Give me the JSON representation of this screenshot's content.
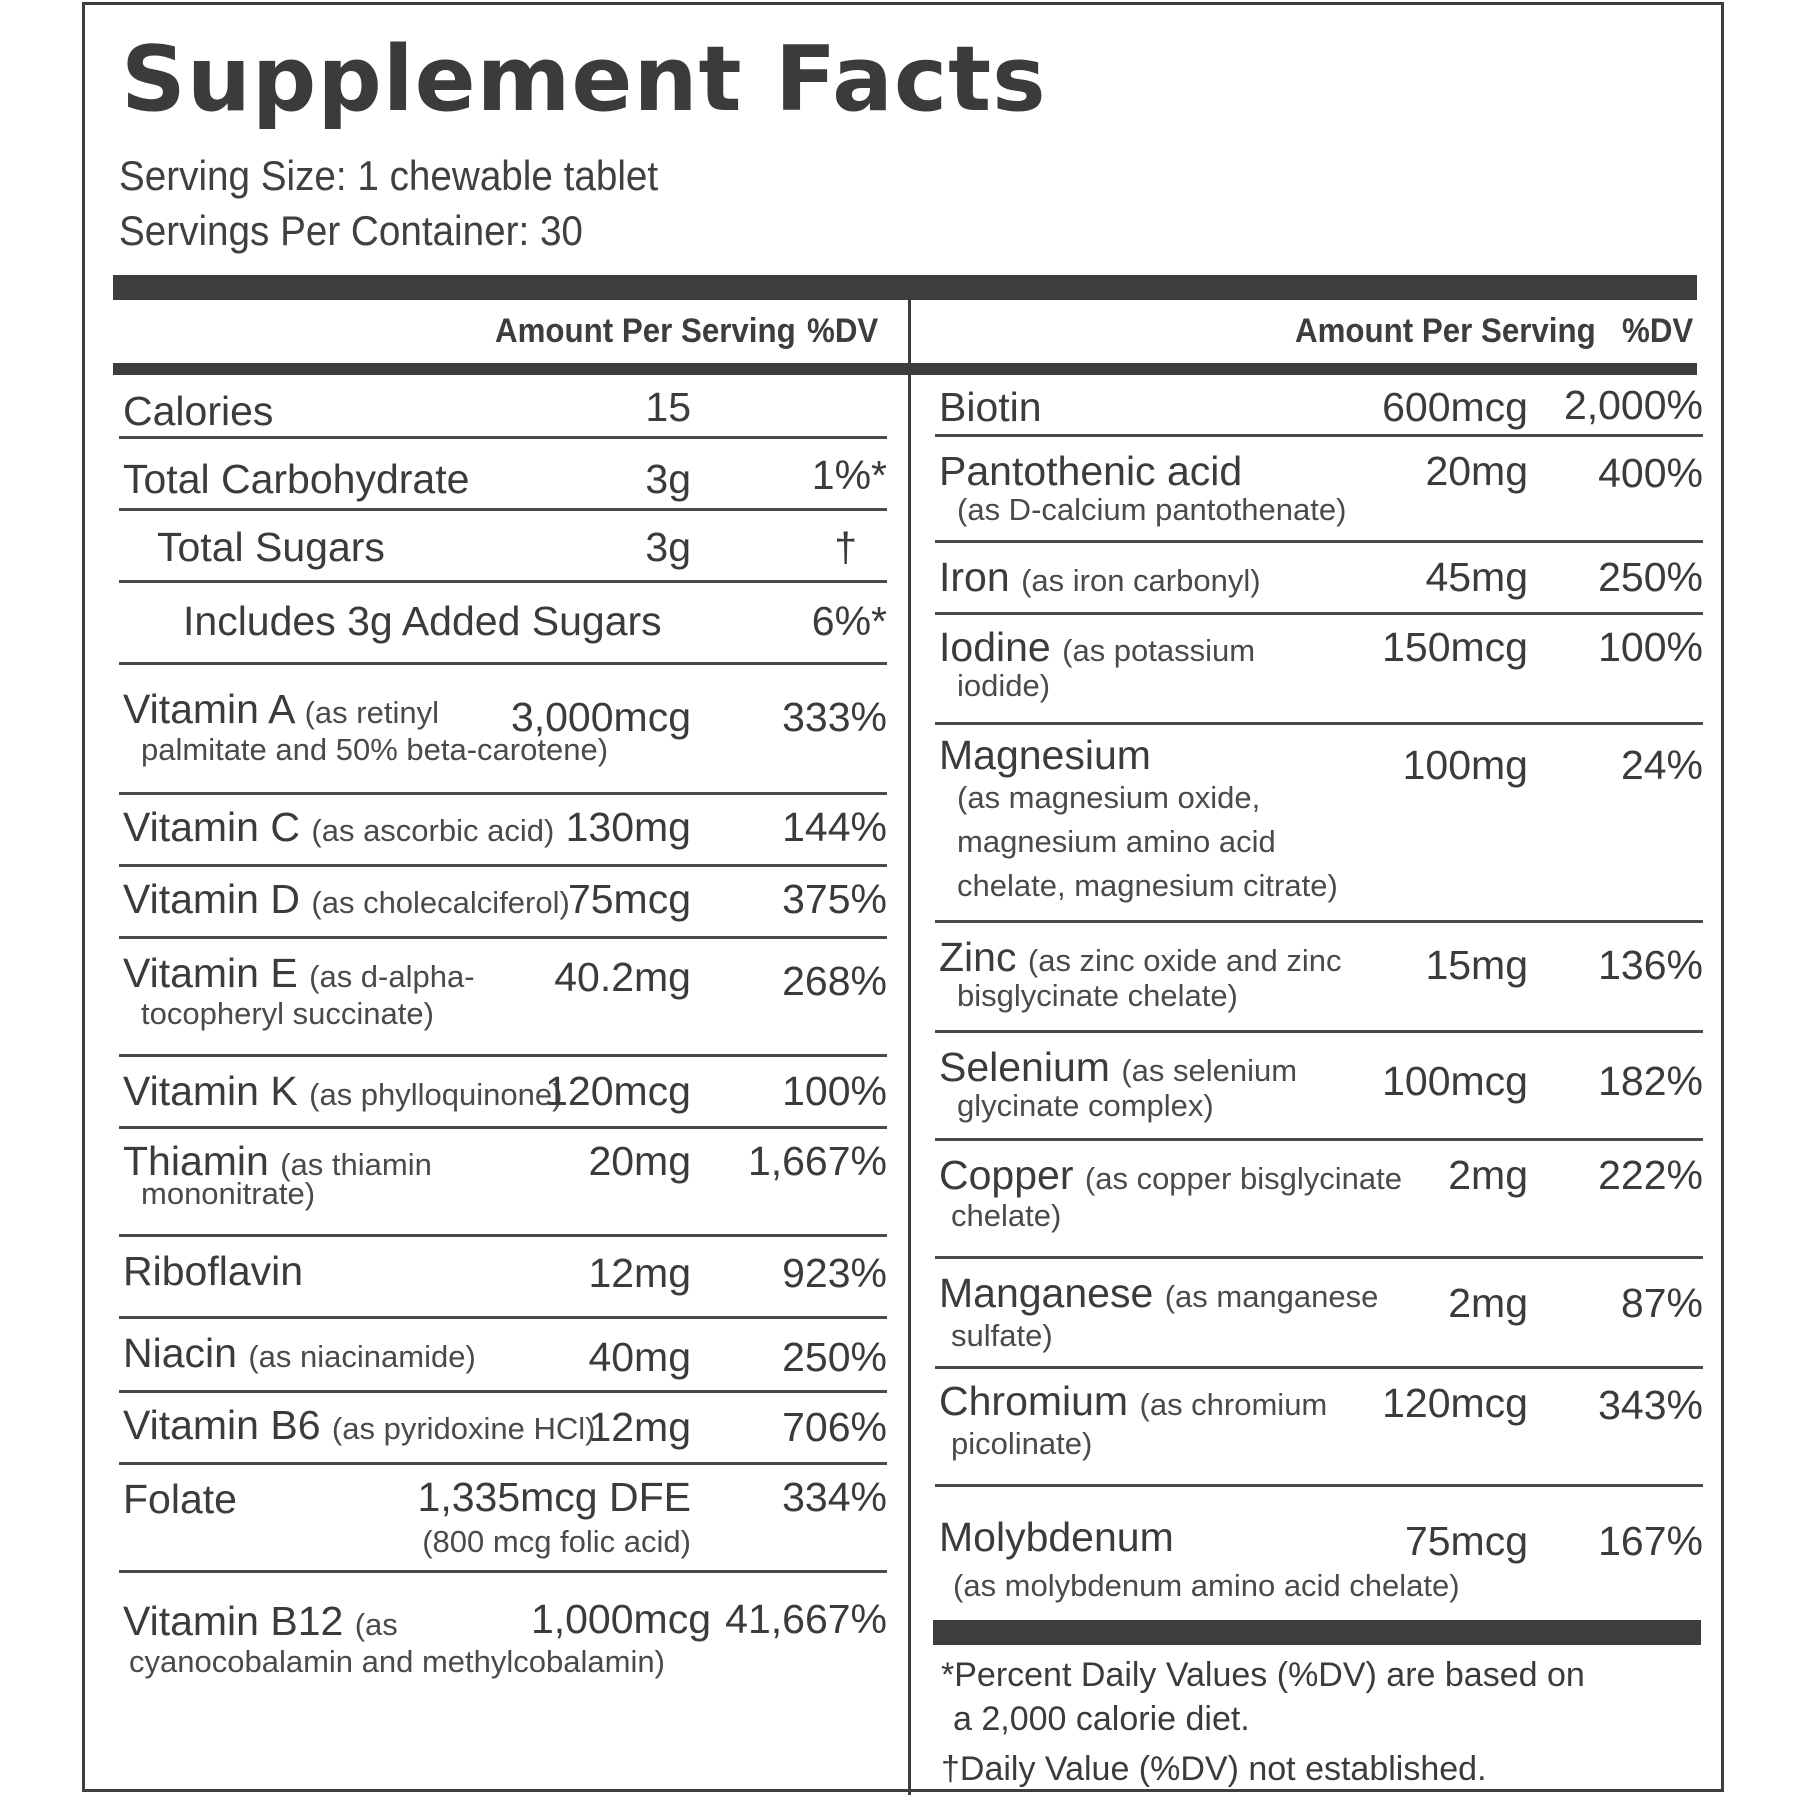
{
  "title": "Supplement Facts",
  "serving_size": "Serving Size: 1 chewable tablet",
  "servings_per_container": "Servings Per Container: 30",
  "header": {
    "amount": "Amount Per Serving",
    "dv": "%DV"
  },
  "left": {
    "calories": {
      "name": "Calories",
      "amount": "15",
      "dv": ""
    },
    "total_carb": {
      "name": "Total Carbohydrate",
      "amount": "3g",
      "dv": "1%*"
    },
    "total_sugars": {
      "name": "Total Sugars",
      "amount": "3g",
      "dv": "†"
    },
    "added_sugars": {
      "name": "Includes 3g Added Sugars",
      "dv": "6%*"
    },
    "vitamin_a": {
      "name": "Vitamin A",
      "src": "(as retinyl",
      "src2": "palmitate and 50% beta-carotene)",
      "amount": "3,000mcg",
      "dv": "333%"
    },
    "vitamin_c": {
      "name": "Vitamin C",
      "src": "(as ascorbic acid)",
      "amount": "130mg",
      "dv": "144%"
    },
    "vitamin_d": {
      "name": "Vitamin D",
      "src": "(as cholecalciferol)",
      "amount": "75mcg",
      "dv": "375%"
    },
    "vitamin_e": {
      "name": "Vitamin E",
      "src": "(as d-alpha-",
      "src2": "tocopheryl succinate)",
      "amount": "40.2mg",
      "dv": "268%"
    },
    "vitamin_k": {
      "name": "Vitamin K",
      "src": "(as phylloquinone)",
      "amount": "120mcg",
      "dv": "100%"
    },
    "thiamin": {
      "name": "Thiamin",
      "src": "(as thiamin",
      "src2": "mononitrate)",
      "amount": "20mg",
      "dv": "1,667%"
    },
    "riboflavin": {
      "name": "Riboflavin",
      "amount": "12mg",
      "dv": "923%"
    },
    "niacin": {
      "name": "Niacin",
      "src": "(as niacinamide)",
      "amount": "40mg",
      "dv": "250%"
    },
    "vitamin_b6": {
      "name": "Vitamin B6",
      "src": "(as pyridoxine HCl)",
      "amount": "12mg",
      "dv": "706%"
    },
    "folate": {
      "name": "Folate",
      "amount": "1,335mcg DFE",
      "amount2": "(800 mcg folic acid)",
      "dv": "334%"
    },
    "vitamin_b12": {
      "name": "Vitamin B12",
      "src": "(as",
      "src2": "cyanocobalamin and methylcobalamin)",
      "amount": "1,000mcg",
      "dv": "41,667%"
    }
  },
  "right": {
    "biotin": {
      "name": "Biotin",
      "amount": "600mcg",
      "dv": "2,000%"
    },
    "pantothenic": {
      "name": "Pantothenic acid",
      "src2": "(as D-calcium pantothenate)",
      "amount": "20mg",
      "dv": "400%"
    },
    "iron": {
      "name": "Iron",
      "src": "(as iron carbonyl)",
      "amount": "45mg",
      "dv": "250%"
    },
    "iodine": {
      "name": "Iodine",
      "src": "(as potassium",
      "src2": "iodide)",
      "amount": "150mcg",
      "dv": "100%"
    },
    "magnesium": {
      "name": "Magnesium",
      "src2": "(as magnesium oxide,",
      "src3": "magnesium amino acid",
      "src4": "chelate, magnesium citrate)",
      "amount": "100mg",
      "dv": "24%"
    },
    "zinc": {
      "name": "Zinc",
      "src": "(as zinc oxide and zinc",
      "src2": "bisglycinate chelate)",
      "amount": "15mg",
      "dv": "136%"
    },
    "selenium": {
      "name": "Selenium",
      "src": "(as selenium",
      "src2": "glycinate complex)",
      "amount": "100mcg",
      "dv": "182%"
    },
    "copper": {
      "name": "Copper",
      "src": "(as copper bisglycinate",
      "src2": "chelate)",
      "amount": "2mg",
      "dv": "222%"
    },
    "manganese": {
      "name": "Manganese",
      "src": "(as manganese",
      "src2": "sulfate)",
      "amount": "2mg",
      "dv": "87%"
    },
    "chromium": {
      "name": "Chromium",
      "src": "(as chromium",
      "src2": "picolinate)",
      "amount": "120mcg",
      "dv": "343%"
    },
    "molybdenum": {
      "name": "Molybdenum",
      "src2": "(as molybdenum amino acid chelate)",
      "amount": "75mcg",
      "dv": "167%"
    }
  },
  "footnotes": {
    "dv_note_1": "*Percent Daily Values (%DV) are based on",
    "dv_note_2": "a 2,000 calorie diet.",
    "not_established": "†Daily Value (%DV) not established."
  }
}
